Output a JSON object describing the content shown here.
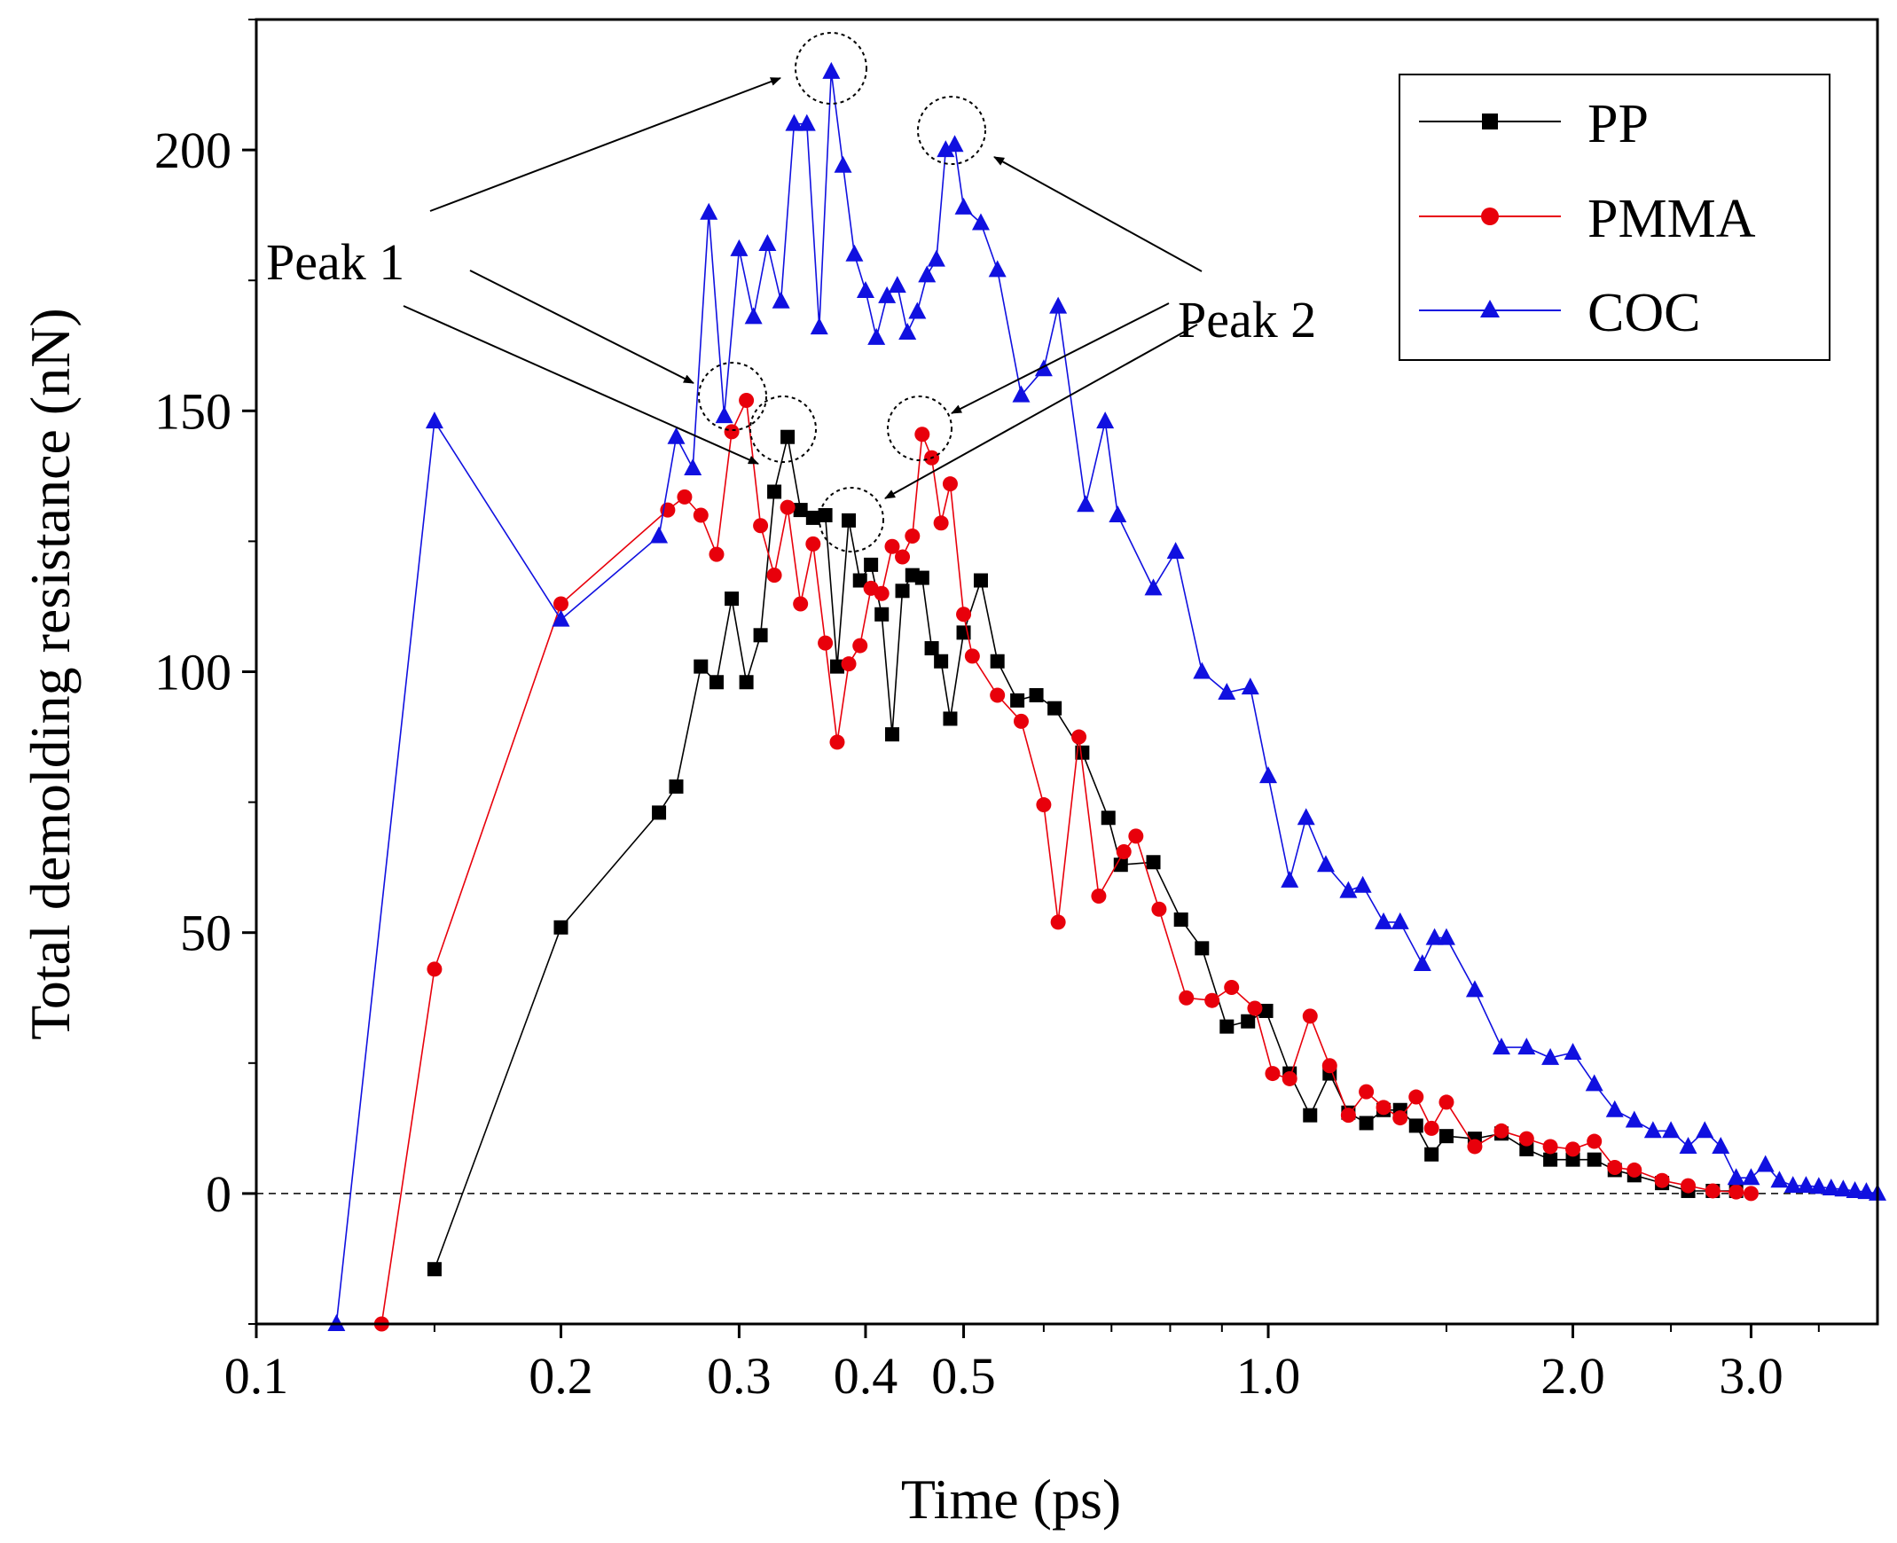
{
  "chart_data": {
    "type": "line",
    "xscale": "log",
    "xlabel": "Time (ps)",
    "ylabel": "Total demolding resistance (nN)",
    "xlim": [
      0.1,
      4.0
    ],
    "ylim": [
      -25,
      225
    ],
    "xticks": [
      {
        "value": 0.1,
        "label": "0.1"
      },
      {
        "value": 0.2,
        "label": "0.2"
      },
      {
        "value": 0.3,
        "label": "0.3"
      },
      {
        "value": 0.4,
        "label": "0.4"
      },
      {
        "value": 0.5,
        "label": "0.5"
      },
      {
        "value": 1.0,
        "label": "1.0"
      },
      {
        "value": 2.0,
        "label": "2.0"
      },
      {
        "value": 3.0,
        "label": "3.0"
      }
    ],
    "yticks": [
      {
        "value": 0,
        "label": "0"
      },
      {
        "value": 50,
        "label": "50"
      },
      {
        "value": 100,
        "label": "100"
      },
      {
        "value": 150,
        "label": "150"
      },
      {
        "value": 200,
        "label": "200"
      }
    ],
    "reference_line": {
      "y": 0,
      "style": "dashed"
    },
    "legend_position": "top-right",
    "series": [
      {
        "name": "PP",
        "color": "#000000",
        "marker": "square",
        "points": [
          [
            0.15,
            -14.5
          ],
          [
            0.2,
            51
          ],
          [
            0.25,
            73
          ],
          [
            0.26,
            78
          ],
          [
            0.275,
            101
          ],
          [
            0.285,
            98
          ],
          [
            0.295,
            114
          ],
          [
            0.305,
            98
          ],
          [
            0.315,
            107
          ],
          [
            0.325,
            134.5
          ],
          [
            0.335,
            145
          ],
          [
            0.345,
            131
          ],
          [
            0.355,
            129.5
          ],
          [
            0.365,
            130
          ],
          [
            0.375,
            101
          ],
          [
            0.385,
            129
          ],
          [
            0.395,
            117.5
          ],
          [
            0.405,
            120.5
          ],
          [
            0.415,
            111
          ],
          [
            0.425,
            88
          ],
          [
            0.435,
            115.5
          ],
          [
            0.445,
            118.5
          ],
          [
            0.455,
            118
          ],
          [
            0.465,
            104.5
          ],
          [
            0.475,
            102
          ],
          [
            0.485,
            91
          ],
          [
            0.5,
            107.5
          ],
          [
            0.52,
            117.5
          ],
          [
            0.54,
            102
          ],
          [
            0.565,
            94.5
          ],
          [
            0.59,
            95.5
          ],
          [
            0.615,
            93
          ],
          [
            0.655,
            84.5
          ],
          [
            0.695,
            72
          ],
          [
            0.715,
            63
          ],
          [
            0.77,
            63.5
          ],
          [
            0.82,
            52.5
          ],
          [
            0.86,
            47
          ],
          [
            0.91,
            32
          ],
          [
            0.955,
            33
          ],
          [
            0.995,
            35
          ],
          [
            1.05,
            23
          ],
          [
            1.1,
            15
          ],
          [
            1.15,
            23
          ],
          [
            1.2,
            15.5
          ],
          [
            1.25,
            13.5
          ],
          [
            1.3,
            16
          ],
          [
            1.35,
            16
          ],
          [
            1.4,
            13
          ],
          [
            1.45,
            7.5
          ],
          [
            1.5,
            11
          ],
          [
            1.6,
            10.5
          ],
          [
            1.7,
            11.5
          ],
          [
            1.8,
            8.5
          ],
          [
            1.9,
            6.5
          ],
          [
            2.0,
            6.5
          ],
          [
            2.1,
            6.5
          ],
          [
            2.2,
            4.5
          ],
          [
            2.3,
            3.5
          ],
          [
            2.45,
            2
          ],
          [
            2.6,
            0.5
          ],
          [
            2.75,
            0.5
          ],
          [
            2.9,
            0.5
          ]
        ]
      },
      {
        "name": "PMMA",
        "color": "#e8000b",
        "marker": "circle",
        "points": [
          [
            0.133,
            -25
          ],
          [
            0.15,
            43
          ],
          [
            0.2,
            113
          ],
          [
            0.255,
            131
          ],
          [
            0.265,
            133.5
          ],
          [
            0.275,
            130
          ],
          [
            0.285,
            122.5
          ],
          [
            0.295,
            146
          ],
          [
            0.305,
            152
          ],
          [
            0.315,
            128
          ],
          [
            0.325,
            118.5
          ],
          [
            0.335,
            131.5
          ],
          [
            0.345,
            113
          ],
          [
            0.355,
            124.5
          ],
          [
            0.365,
            105.5
          ],
          [
            0.375,
            86.5
          ],
          [
            0.385,
            101.5
          ],
          [
            0.395,
            105
          ],
          [
            0.405,
            116
          ],
          [
            0.415,
            115
          ],
          [
            0.425,
            124
          ],
          [
            0.435,
            122
          ],
          [
            0.445,
            126
          ],
          [
            0.455,
            145.5
          ],
          [
            0.465,
            141
          ],
          [
            0.475,
            128.5
          ],
          [
            0.485,
            136
          ],
          [
            0.5,
            111
          ],
          [
            0.51,
            103
          ],
          [
            0.54,
            95.5
          ],
          [
            0.57,
            90.5
          ],
          [
            0.6,
            74.5
          ],
          [
            0.62,
            52
          ],
          [
            0.65,
            87.5
          ],
          [
            0.68,
            57
          ],
          [
            0.72,
            65.5
          ],
          [
            0.74,
            68.5
          ],
          [
            0.78,
            54.5
          ],
          [
            0.83,
            37.5
          ],
          [
            0.88,
            37
          ],
          [
            0.92,
            39.5
          ],
          [
            0.97,
            35.5
          ],
          [
            1.01,
            23
          ],
          [
            1.05,
            22
          ],
          [
            1.1,
            34
          ],
          [
            1.15,
            24.5
          ],
          [
            1.2,
            15
          ],
          [
            1.25,
            19.5
          ],
          [
            1.3,
            16.5
          ],
          [
            1.35,
            14.5
          ],
          [
            1.4,
            18.5
          ],
          [
            1.45,
            12.5
          ],
          [
            1.5,
            17.5
          ],
          [
            1.6,
            9
          ],
          [
            1.7,
            12
          ],
          [
            1.8,
            10.5
          ],
          [
            1.9,
            9
          ],
          [
            2.0,
            8.5
          ],
          [
            2.1,
            10
          ],
          [
            2.2,
            5
          ],
          [
            2.3,
            4.5
          ],
          [
            2.45,
            2.5
          ],
          [
            2.6,
            1.5
          ],
          [
            2.75,
            0.5
          ],
          [
            2.9,
            0.3
          ],
          [
            3.0,
            0
          ]
        ]
      },
      {
        "name": "COC",
        "color": "#1010e0",
        "marker": "triangle",
        "points": [
          [
            0.12,
            -25
          ],
          [
            0.15,
            148
          ],
          [
            0.2,
            110
          ],
          [
            0.25,
            126
          ],
          [
            0.26,
            145
          ],
          [
            0.27,
            139
          ],
          [
            0.28,
            188
          ],
          [
            0.29,
            149
          ],
          [
            0.3,
            181
          ],
          [
            0.31,
            168
          ],
          [
            0.32,
            182
          ],
          [
            0.33,
            171
          ],
          [
            0.34,
            205
          ],
          [
            0.35,
            205
          ],
          [
            0.36,
            166
          ],
          [
            0.37,
            215
          ],
          [
            0.38,
            197
          ],
          [
            0.39,
            180
          ],
          [
            0.4,
            173
          ],
          [
            0.41,
            164
          ],
          [
            0.42,
            172
          ],
          [
            0.43,
            174
          ],
          [
            0.44,
            165
          ],
          [
            0.45,
            169
          ],
          [
            0.46,
            176
          ],
          [
            0.47,
            179
          ],
          [
            0.48,
            200
          ],
          [
            0.49,
            201
          ],
          [
            0.5,
            189
          ],
          [
            0.52,
            186
          ],
          [
            0.54,
            177
          ],
          [
            0.57,
            153
          ],
          [
            0.6,
            158
          ],
          [
            0.62,
            170
          ],
          [
            0.66,
            132
          ],
          [
            0.69,
            148
          ],
          [
            0.71,
            130
          ],
          [
            0.77,
            116
          ],
          [
            0.81,
            123
          ],
          [
            0.86,
            100
          ],
          [
            0.91,
            96
          ],
          [
            0.96,
            97
          ],
          [
            1.0,
            80
          ],
          [
            1.05,
            60
          ],
          [
            1.09,
            72
          ],
          [
            1.14,
            63
          ],
          [
            1.2,
            58
          ],
          [
            1.24,
            59
          ],
          [
            1.3,
            52
          ],
          [
            1.35,
            52
          ],
          [
            1.42,
            44
          ],
          [
            1.46,
            49
          ],
          [
            1.5,
            49
          ],
          [
            1.6,
            39
          ],
          [
            1.7,
            28
          ],
          [
            1.8,
            28
          ],
          [
            1.9,
            26
          ],
          [
            2.0,
            27
          ],
          [
            2.1,
            21
          ],
          [
            2.2,
            16
          ],
          [
            2.3,
            14
          ],
          [
            2.4,
            12
          ],
          [
            2.5,
            12
          ],
          [
            2.6,
            9
          ],
          [
            2.7,
            12
          ],
          [
            2.8,
            9
          ],
          [
            2.9,
            3
          ],
          [
            3.0,
            3
          ],
          [
            3.1,
            5.5
          ],
          [
            3.2,
            2.5
          ],
          [
            3.3,
            1.5
          ],
          [
            3.4,
            1.5
          ],
          [
            3.5,
            1.3
          ],
          [
            3.6,
            1
          ],
          [
            3.7,
            0.8
          ],
          [
            3.8,
            0.5
          ],
          [
            3.9,
            0.3
          ],
          [
            4.0,
            0
          ]
        ]
      }
    ],
    "annotations": [
      {
        "text": "Peak 1"
      },
      {
        "text": "Peak 2"
      }
    ]
  }
}
